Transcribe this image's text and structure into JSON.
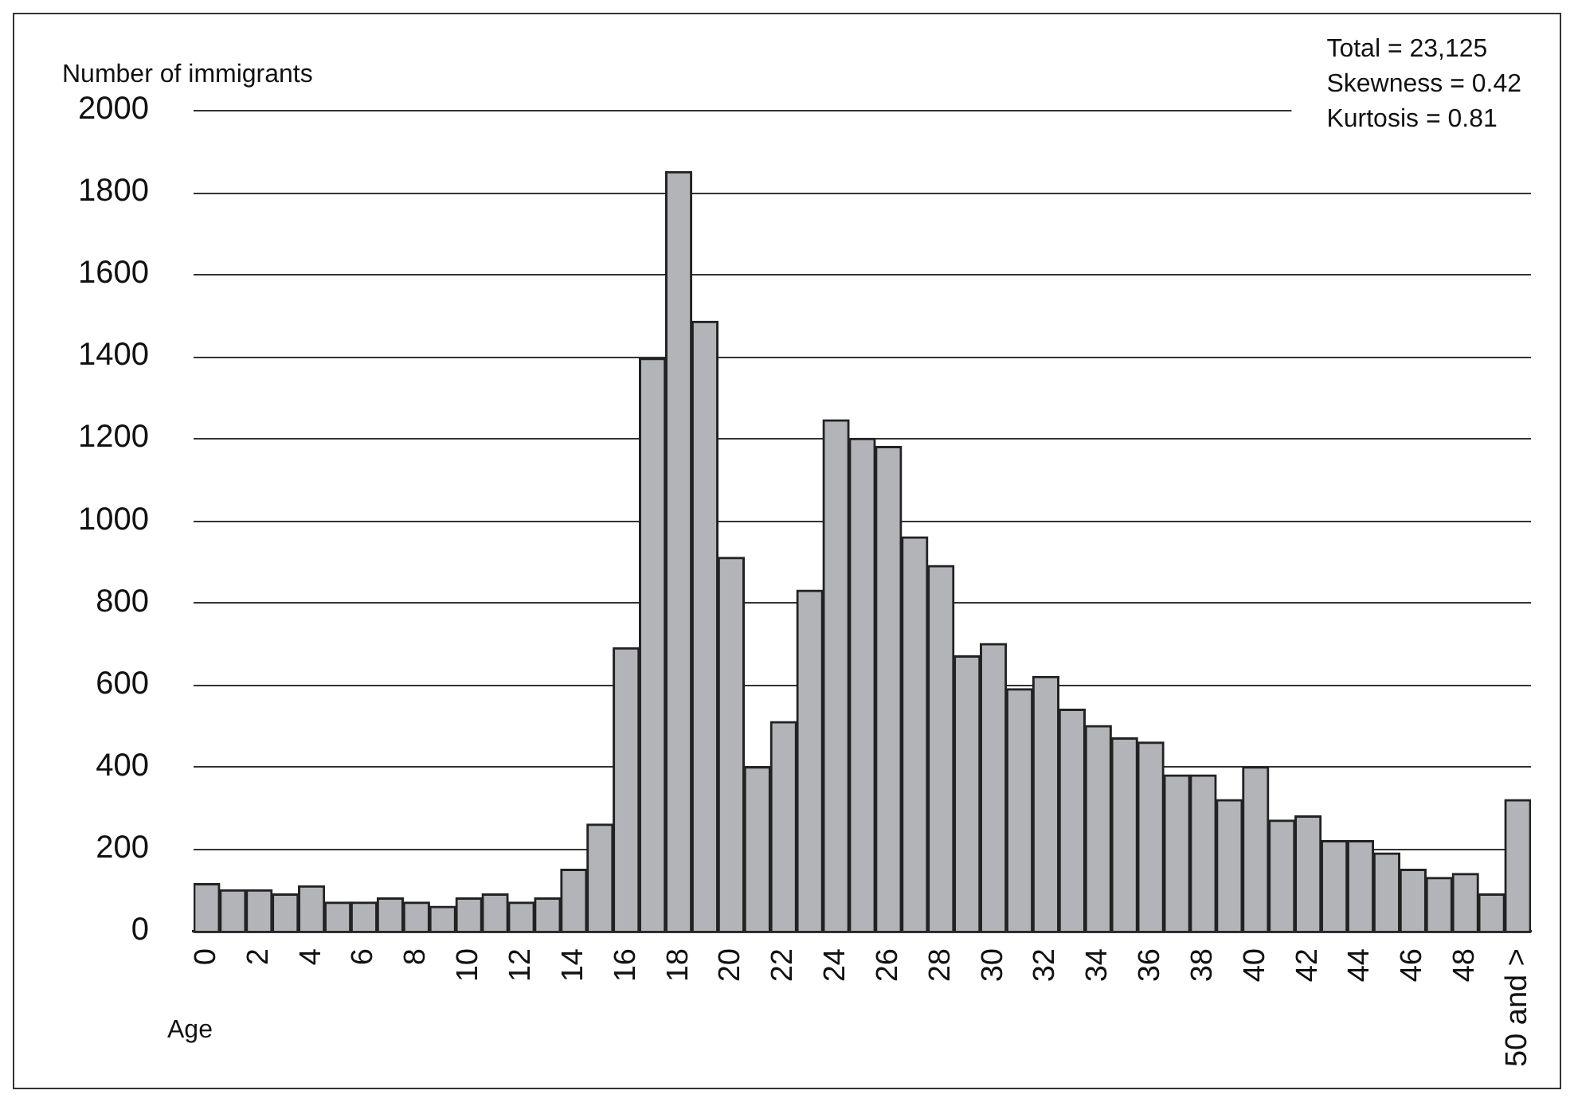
{
  "chart_data": {
    "type": "bar",
    "ylabel": "Number of immigrants",
    "xlabel": "Age",
    "annotations": [
      "Total = 23,125",
      "Skewness = 0.42",
      "Kurtosis = 0.81"
    ],
    "categories": [
      "0",
      null,
      "2",
      null,
      "4",
      null,
      "6",
      null,
      "8",
      null,
      "10",
      null,
      "12",
      null,
      "14",
      null,
      "16",
      null,
      "18",
      null,
      "20",
      null,
      "22",
      null,
      "24",
      null,
      "26",
      null,
      "28",
      null,
      "30",
      null,
      "32",
      null,
      "34",
      null,
      "36",
      null,
      "38",
      null,
      "40",
      null,
      "42",
      null,
      "44",
      null,
      "46",
      null,
      "48",
      null,
      "50 and >"
    ],
    "values": [
      115,
      100,
      100,
      90,
      110,
      70,
      70,
      80,
      70,
      60,
      80,
      90,
      70,
      80,
      150,
      260,
      690,
      1395,
      1850,
      1485,
      910,
      400,
      510,
      830,
      1245,
      1200,
      1180,
      960,
      890,
      670,
      700,
      590,
      620,
      540,
      500,
      470,
      460,
      380,
      380,
      320,
      400,
      270,
      280,
      220,
      220,
      190,
      150,
      130,
      140,
      90,
      320
    ],
    "color": "#b3b4b8",
    "ylim": [
      0,
      2000
    ],
    "yticks": [
      0,
      200,
      400,
      600,
      800,
      1000,
      1200,
      1400,
      1600,
      1800,
      2000
    ],
    "grid": "y",
    "legend": false
  }
}
